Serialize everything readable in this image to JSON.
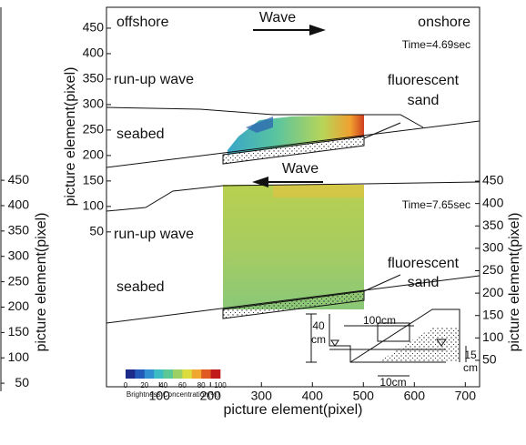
{
  "chart_data": {
    "type": "image-figure",
    "xlabel": "picture element(pixel)",
    "ylabel": "picture element(pixel)",
    "y2label": "picture element(pixel)",
    "xlim": [
      -4,
      728
    ],
    "xticks": [
      100,
      200,
      300,
      400,
      500,
      600,
      700
    ],
    "ylim": [
      -254,
      491
    ],
    "yticks": [
      50,
      100,
      150,
      200,
      250,
      300,
      350,
      400,
      450
    ],
    "y2lim": [
      -9,
      838
    ],
    "y2ticks": [
      50,
      100,
      150,
      200,
      250,
      300,
      350,
      400,
      450
    ],
    "left_panel": {
      "ylabel": "picture element(pixel)",
      "ylim": [
        43,
        791
      ],
      "yticks": [
        50,
        100,
        150,
        200,
        250,
        300,
        350,
        400,
        450
      ]
    },
    "annotations": [
      "offshore",
      "Wave",
      "onshore",
      "Time=4.69sec",
      "run-up wave",
      "fluorescent",
      "sand",
      "seabed",
      "Wave",
      "Time=7.65sec",
      "run-up wave",
      "fluorescent",
      "sand",
      "seabed"
    ],
    "inset": [
      "100cm",
      "40",
      "cm",
      "15",
      "cm",
      "10cm"
    ],
    "colorbar": {
      "label": "Brightness Concentration(%)",
      "ticks": [
        0,
        20,
        40,
        60,
        80,
        100
      ],
      "colors": [
        "#1c2a8a",
        "#2258b8",
        "#2f8fd0",
        "#3cbdc4",
        "#5cc896",
        "#9cd064",
        "#dcdc3c",
        "#f0a830",
        "#e05822",
        "#c01a1a"
      ]
    }
  }
}
